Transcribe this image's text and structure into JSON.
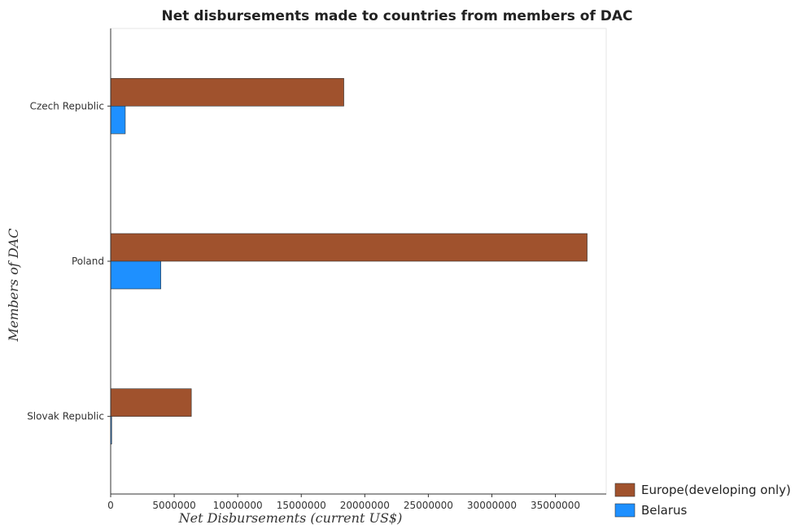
{
  "chart_data": {
    "type": "bar",
    "orientation": "horizontal",
    "title": "Net disbursements made to countries from members of DAC",
    "xlabel": "Net Disbursements (current US$)",
    "ylabel": "Members of DAC",
    "categories": [
      "Czech Republic",
      "Poland",
      "Slovak Republic"
    ],
    "series": [
      {
        "name": "Europe(developing only)",
        "color": "#a0522d",
        "values": [
          18350000,
          37500000,
          6350000
        ]
      },
      {
        "name": "Belarus",
        "color": "#1e90ff",
        "values": [
          1150000,
          3950000,
          80000
        ]
      }
    ],
    "xlim": [
      0,
      39000000
    ],
    "xticks": [
      0,
      5000000,
      10000000,
      15000000,
      20000000,
      25000000,
      30000000,
      35000000
    ],
    "xtick_labels": [
      "0",
      "5000000",
      "10000000",
      "15000000",
      "20000000",
      "25000000",
      "30000000",
      "35000000"
    ],
    "grid": false,
    "legend_position": "bottom-right"
  }
}
